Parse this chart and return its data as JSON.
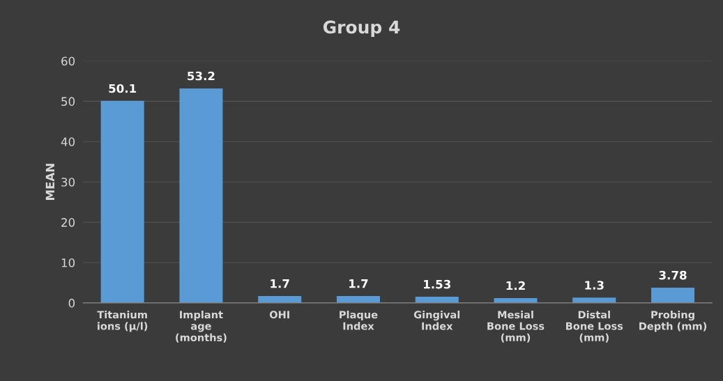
{
  "chart_data": {
    "type": "bar",
    "title": "Group 4",
    "ylabel": "MEAN",
    "categories": [
      "Titanium ions (μ/l)",
      "Implant age (months)",
      "OHI",
      "Plaque Index",
      "Gingival Index",
      "Mesial Bone Loss (mm)",
      "Distal Bone Loss (mm)",
      "Probing Depth (mm)"
    ],
    "values": [
      50.1,
      53.2,
      1.7,
      1.7,
      1.53,
      1.2,
      1.3,
      3.78
    ],
    "color": "#5b9bd5",
    "ylim": [
      0,
      60
    ],
    "yticks": [
      0,
      10,
      20,
      30,
      40,
      50,
      60
    ],
    "grid": "y",
    "data_labels": true
  }
}
